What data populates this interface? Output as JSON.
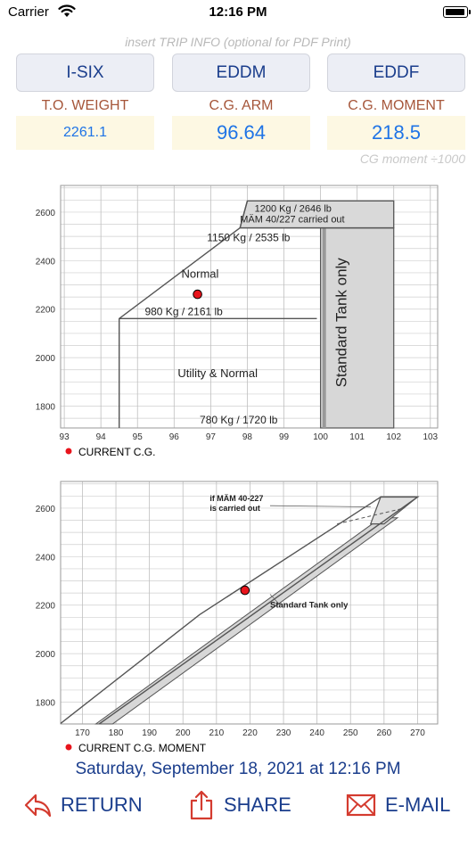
{
  "status": {
    "carrier": "Carrier",
    "time": "12:16 PM",
    "battery_level": 0.92
  },
  "trip": {
    "hint": "insert TRIP INFO (optional for PDF Print)",
    "buttons": [
      "I-SIX",
      "EDDM",
      "EDDF"
    ]
  },
  "values": {
    "weight_label": "T.O. WEIGHT",
    "weight_value": "2261.1",
    "arm_label": "C.G. ARM",
    "arm_value": "96.64",
    "moment_label": "C.G. MOMENT",
    "moment_value": "218.5",
    "moment_note": "CG moment ÷1000"
  },
  "chart_data": [
    {
      "type": "scatter",
      "xlabel": "",
      "ylabel": "",
      "xlim": [
        92.9,
        103.2
      ],
      "ylim": [
        1710,
        2710
      ],
      "xticks": [
        93,
        94,
        95,
        96,
        97,
        98,
        99,
        100,
        101,
        102,
        103
      ],
      "yticks": [
        1800,
        2000,
        2200,
        2400,
        2600
      ],
      "grid": true,
      "annotations": {
        "mam_kg": "1200 Kg / 2646 lb",
        "mam_text": "MÄM 40/227 carried out",
        "mtow_1150": "1150 Kg / 2535 lb",
        "normal": "Normal",
        "normal_980": "980 Kg / 2161 lb",
        "utility": "Utility & Normal",
        "min_780": "780 Kg / 1720 lb",
        "standard_tank": "Standard Tank only"
      },
      "legend": "CURRENT C.G.",
      "point": {
        "x": 96.64,
        "y": 2261.1
      },
      "colors": {
        "point": "#e8141c",
        "envelope": "#555555",
        "shade": "#d7d7d7"
      }
    },
    {
      "type": "scatter",
      "xlabel": "",
      "ylabel": "",
      "xlim": [
        163.5,
        276
      ],
      "ylim": [
        1710,
        2710
      ],
      "xticks": [
        170,
        180,
        190,
        200,
        210,
        220,
        230,
        240,
        250,
        260,
        270
      ],
      "yticks": [
        1800,
        2000,
        2200,
        2400,
        2600
      ],
      "grid": true,
      "annotations": {
        "mam_line1": "if MÄM 40-227",
        "mam_line2": "is carried out",
        "standard_tank": "Standard Tank only"
      },
      "legend": "CURRENT C.G. MOMENT",
      "point": {
        "x": 218.5,
        "y": 2261.1
      },
      "colors": {
        "point": "#e8141c",
        "envelope": "#555555",
        "shade": "#d7d7d7"
      }
    }
  ],
  "date_text": "Saturday, September 18, 2021 at 12:16 PM",
  "actions": {
    "return_label": "RETURN",
    "share_label": "SHARE",
    "email_label": "E-MAIL"
  }
}
